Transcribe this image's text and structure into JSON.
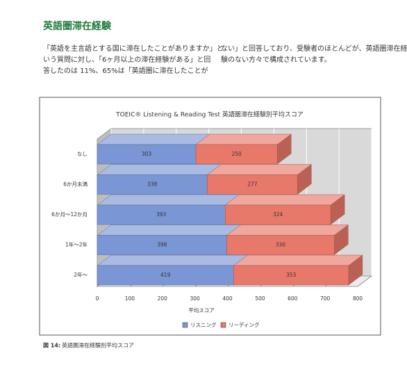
{
  "header": {
    "title": "英語圏滞在経験"
  },
  "paragraph_left": [
    "「英語を主言語とする国に滞在したことがありますか」と",
    "いう質問に対し、「6ヶ月以上の滞在経験がある」と回",
    "答したのは 11%、65%は「英語圏に滞在したことが"
  ],
  "paragraph_right": [
    "ない」と回答しており、受験者のほとんどが、英語圏滞在経",
    "験のない方々で構成されています。"
  ],
  "chart_data": {
    "type": "bar",
    "orientation": "horizontal",
    "stacked": true,
    "title": "TOEIC® Listening & Reading Test 英語圏滞在経験別平均スコア",
    "x_label": "平均スコア",
    "categories": [
      "なし",
      "6か月未満",
      "6か月～12か月",
      "1年～2年",
      "2年～"
    ],
    "series": [
      {
        "name": "リスニング",
        "color": "#7b96d4",
        "values": [
          303,
          338,
          393,
          398,
          419
        ]
      },
      {
        "name": "リーディング",
        "color": "#e8796a",
        "values": [
          250,
          277,
          324,
          330,
          353
        ]
      }
    ],
    "xlim": [
      0,
      800
    ],
    "xticks": [
      0,
      100,
      200,
      300,
      400,
      500,
      600,
      700,
      800
    ],
    "grid": true
  },
  "caption": {
    "label": "図 14:",
    "text": "英語圏滞在経験別平均スコア"
  }
}
